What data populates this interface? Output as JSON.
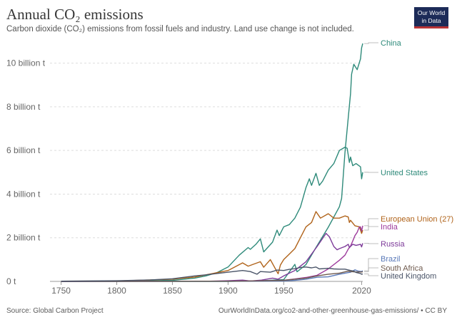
{
  "header": {
    "title": "Annual CO₂ emissions",
    "subtitle": "Carbon dioxide (CO₂) emissions from fossil fuels and industry. Land use change is not included.",
    "logo_line1": "Our World",
    "logo_line2": "in Data"
  },
  "footer": {
    "source": "Source: Global Carbon Project",
    "link": "OurWorldInData.org/co2-and-other-greenhouse-gas-emissions/ • CC BY"
  },
  "chart_data": {
    "type": "line",
    "title": "Annual CO₂ emissions",
    "xlabel": "",
    "ylabel": "",
    "xlim": [
      1740,
      2021
    ],
    "ylim": [
      0,
      11000000000
    ],
    "grid": true,
    "legend": "right",
    "x_ticks": [
      1750,
      1800,
      1850,
      1900,
      1950,
      2020
    ],
    "y_ticks": [
      {
        "value": 0,
        "label": "0 t"
      },
      {
        "value": 2000000000,
        "label": "2 billion t"
      },
      {
        "value": 4000000000,
        "label": "4 billion t"
      },
      {
        "value": 6000000000,
        "label": "6 billion t"
      },
      {
        "value": 8000000000,
        "label": "8 billion t"
      },
      {
        "value": 10000000000,
        "label": "10 billion t"
      }
    ],
    "series": [
      {
        "name": "China",
        "color": "#2e8a7a",
        "points": [
          [
            1750,
            0
          ],
          [
            1900,
            0
          ],
          [
            1930,
            0.03
          ],
          [
            1950,
            0.08
          ],
          [
            1960,
            0.78
          ],
          [
            1962,
            0.44
          ],
          [
            1970,
            0.77
          ],
          [
            1978,
            1.47
          ],
          [
            1990,
            2.48
          ],
          [
            2000,
            3.42
          ],
          [
            2002,
            3.8
          ],
          [
            2005,
            5.9
          ],
          [
            2008,
            7.5
          ],
          [
            2010,
            8.6
          ],
          [
            2011,
            9.5
          ],
          [
            2013,
            9.95
          ],
          [
            2016,
            9.7
          ],
          [
            2019,
            10.2
          ],
          [
            2020,
            10.7
          ],
          [
            2021,
            10.9
          ]
        ]
      },
      {
        "name": "United States",
        "color": "#2e8a7a",
        "points": [
          [
            1750,
            0
          ],
          [
            1800,
            0.004
          ],
          [
            1850,
            0.05
          ],
          [
            1870,
            0.15
          ],
          [
            1880,
            0.25
          ],
          [
            1890,
            0.4
          ],
          [
            1900,
            0.66
          ],
          [
            1910,
            1.2
          ],
          [
            1918,
            1.55
          ],
          [
            1920,
            1.47
          ],
          [
            1925,
            1.7
          ],
          [
            1929,
            1.95
          ],
          [
            1932,
            1.35
          ],
          [
            1940,
            1.8
          ],
          [
            1944,
            2.35
          ],
          [
            1946,
            2.1
          ],
          [
            1950,
            2.5
          ],
          [
            1955,
            2.6
          ],
          [
            1960,
            2.9
          ],
          [
            1965,
            3.4
          ],
          [
            1970,
            4.3
          ],
          [
            1973,
            4.7
          ],
          [
            1975,
            4.4
          ],
          [
            1979,
            4.95
          ],
          [
            1982,
            4.4
          ],
          [
            1985,
            4.6
          ],
          [
            1990,
            5.1
          ],
          [
            1995,
            5.4
          ],
          [
            2000,
            6.0
          ],
          [
            2005,
            6.15
          ],
          [
            2007,
            6.1
          ],
          [
            2009,
            5.45
          ],
          [
            2010,
            5.7
          ],
          [
            2012,
            5.3
          ],
          [
            2015,
            5.4
          ],
          [
            2019,
            5.25
          ],
          [
            2020,
            4.7
          ],
          [
            2021,
            5.0
          ]
        ]
      },
      {
        "name": "European Union (27)",
        "color": "#b0631a",
        "points": [
          [
            1750,
            0.01
          ],
          [
            1800,
            0.02
          ],
          [
            1850,
            0.1
          ],
          [
            1870,
            0.2
          ],
          [
            1880,
            0.3
          ],
          [
            1900,
            0.5
          ],
          [
            1913,
            0.85
          ],
          [
            1918,
            0.7
          ],
          [
            1929,
            0.9
          ],
          [
            1932,
            0.65
          ],
          [
            1938,
            1.0
          ],
          [
            1945,
            0.35
          ],
          [
            1947,
            0.75
          ],
          [
            1950,
            1.0
          ],
          [
            1955,
            1.25
          ],
          [
            1960,
            1.5
          ],
          [
            1965,
            2.0
          ],
          [
            1970,
            2.5
          ],
          [
            1975,
            2.7
          ],
          [
            1979,
            3.2
          ],
          [
            1983,
            2.9
          ],
          [
            1990,
            3.1
          ],
          [
            1995,
            2.9
          ],
          [
            2000,
            2.9
          ],
          [
            2005,
            3.0
          ],
          [
            2008,
            2.95
          ],
          [
            2009,
            2.7
          ],
          [
            2010,
            2.8
          ],
          [
            2014,
            2.55
          ],
          [
            2018,
            2.5
          ],
          [
            2020,
            2.2
          ],
          [
            2021,
            2.35
          ]
        ]
      },
      {
        "name": "India",
        "color": "#9d3b9c",
        "points": [
          [
            1750,
            0
          ],
          [
            1900,
            0.01
          ],
          [
            1920,
            0.02
          ],
          [
            1950,
            0.05
          ],
          [
            1960,
            0.11
          ],
          [
            1970,
            0.18
          ],
          [
            1980,
            0.28
          ],
          [
            1990,
            0.57
          ],
          [
            2000,
            0.97
          ],
          [
            2005,
            1.2
          ],
          [
            2008,
            1.48
          ],
          [
            2010,
            1.62
          ],
          [
            2012,
            1.85
          ],
          [
            2014,
            2.1
          ],
          [
            2016,
            2.25
          ],
          [
            2018,
            2.5
          ],
          [
            2019,
            2.5
          ],
          [
            2020,
            2.3
          ],
          [
            2021,
            2.55
          ]
        ]
      },
      {
        "name": "Russia",
        "color": "#7d3a99",
        "points": [
          [
            1750,
            0
          ],
          [
            1880,
            0.005
          ],
          [
            1900,
            0.03
          ],
          [
            1913,
            0.06
          ],
          [
            1920,
            0.02
          ],
          [
            1930,
            0.06
          ],
          [
            1940,
            0.15
          ],
          [
            1945,
            0.1
          ],
          [
            1950,
            0.25
          ],
          [
            1960,
            0.5
          ],
          [
            1970,
            0.9
          ],
          [
            1980,
            1.6
          ],
          [
            1988,
            2.2
          ],
          [
            1991,
            2.05
          ],
          [
            1995,
            1.6
          ],
          [
            1998,
            1.45
          ],
          [
            2000,
            1.5
          ],
          [
            2005,
            1.6
          ],
          [
            2008,
            1.7
          ],
          [
            2009,
            1.55
          ],
          [
            2012,
            1.7
          ],
          [
            2015,
            1.65
          ],
          [
            2019,
            1.7
          ],
          [
            2020,
            1.58
          ],
          [
            2021,
            1.75
          ]
        ]
      },
      {
        "name": "Brazil",
        "color": "#5a79b8",
        "points": [
          [
            1750,
            0
          ],
          [
            1900,
            0.002
          ],
          [
            1950,
            0.02
          ],
          [
            1960,
            0.05
          ],
          [
            1970,
            0.1
          ],
          [
            1980,
            0.19
          ],
          [
            1990,
            0.21
          ],
          [
            2000,
            0.33
          ],
          [
            2010,
            0.42
          ],
          [
            2014,
            0.53
          ],
          [
            2017,
            0.47
          ],
          [
            2020,
            0.45
          ],
          [
            2021,
            0.49
          ]
        ]
      },
      {
        "name": "South Africa",
        "color": "#6f5a4e",
        "points": [
          [
            1750,
            0
          ],
          [
            1900,
            0.01
          ],
          [
            1920,
            0.02
          ],
          [
            1950,
            0.05
          ],
          [
            1960,
            0.1
          ],
          [
            1970,
            0.15
          ],
          [
            1980,
            0.25
          ],
          [
            1990,
            0.33
          ],
          [
            2000,
            0.38
          ],
          [
            2008,
            0.47
          ],
          [
            2010,
            0.45
          ],
          [
            2015,
            0.43
          ],
          [
            2020,
            0.43
          ],
          [
            2021,
            0.44
          ]
        ]
      },
      {
        "name": "United Kingdom",
        "color": "#4a5468",
        "points": [
          [
            1750,
            0.009
          ],
          [
            1800,
            0.03
          ],
          [
            1830,
            0.07
          ],
          [
            1850,
            0.12
          ],
          [
            1870,
            0.25
          ],
          [
            1880,
            0.3
          ],
          [
            1900,
            0.42
          ],
          [
            1913,
            0.5
          ],
          [
            1920,
            0.45
          ],
          [
            1926,
            0.33
          ],
          [
            1929,
            0.45
          ],
          [
            1938,
            0.42
          ],
          [
            1944,
            0.52
          ],
          [
            1950,
            0.5
          ],
          [
            1955,
            0.55
          ],
          [
            1960,
            0.58
          ],
          [
            1965,
            0.64
          ],
          [
            1970,
            0.66
          ],
          [
            1975,
            0.62
          ],
          [
            1979,
            0.66
          ],
          [
            1982,
            0.57
          ],
          [
            1990,
            0.6
          ],
          [
            1995,
            0.57
          ],
          [
            2000,
            0.56
          ],
          [
            2005,
            0.56
          ],
          [
            2010,
            0.5
          ],
          [
            2013,
            0.47
          ],
          [
            2015,
            0.41
          ],
          [
            2019,
            0.36
          ],
          [
            2020,
            0.33
          ],
          [
            2021,
            0.34
          ]
        ]
      }
    ]
  }
}
